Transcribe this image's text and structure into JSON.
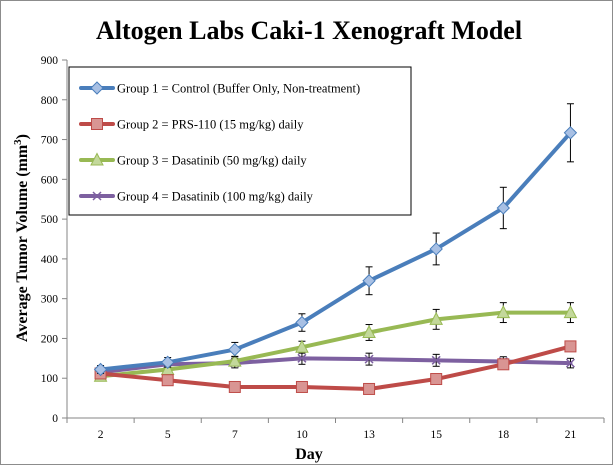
{
  "chart_data": {
    "type": "line",
    "title": "Altogen Labs Caki-1 Xenograft Model",
    "xlabel": "Day",
    "ylabel_prefix": "Average Tumor Volume (mm",
    "ylabel_superscript": "3",
    "ylabel_suffix": ")",
    "categories": [
      "2",
      "5",
      "7",
      "10",
      "13",
      "15",
      "18",
      "21"
    ],
    "ylim": [
      0,
      900
    ],
    "yticks": [
      0,
      100,
      200,
      300,
      400,
      500,
      600,
      700,
      800,
      900
    ],
    "legend_position": "top-left",
    "grid": false,
    "series": [
      {
        "name": "Group 1 = Control (Buffer Only, Non-treatment)",
        "color": "#4a7ebb",
        "marker": "diamond",
        "values": [
          122,
          140,
          172,
          240,
          345,
          425,
          528,
          717
        ],
        "errors": [
          10,
          12,
          18,
          22,
          35,
          40,
          52,
          73
        ]
      },
      {
        "name": "Group 2 = PRS-110 (15 mg/kg) daily",
        "color": "#be4b48",
        "marker": "square",
        "values": [
          112,
          95,
          78,
          78,
          73,
          98,
          135,
          180
        ]
      },
      {
        "name": "Group 3 = Dasatinib (50 mg/kg) daily",
        "color": "#98b954",
        "marker": "triangle",
        "values": [
          105,
          122,
          143,
          178,
          215,
          248,
          265,
          265
        ],
        "errors": [
          8,
          10,
          12,
          15,
          20,
          25,
          25,
          25
        ]
      },
      {
        "name": "Group 4 = Dasatinib (100 mg/kg) daily",
        "color": "#7d60a0",
        "marker": "x",
        "values": [
          115,
          135,
          138,
          150,
          148,
          145,
          142,
          138
        ],
        "errors": [
          10,
          12,
          12,
          15,
          15,
          15,
          12,
          12
        ]
      }
    ]
  }
}
